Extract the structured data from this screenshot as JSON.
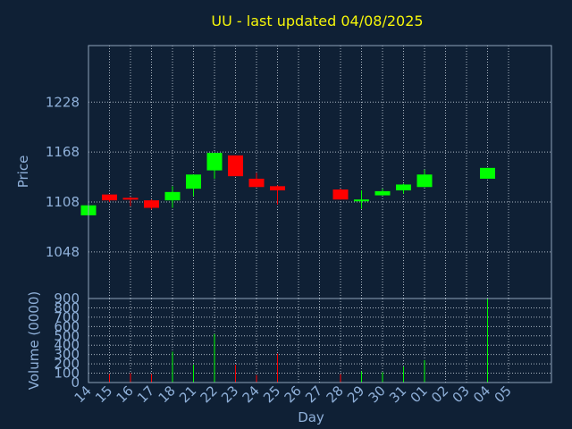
{
  "chart_data": [
    {
      "type": "candlestick",
      "title": "UU - last updated 04/08/2025",
      "ylabel": "Price",
      "xlabel": "",
      "yticks": [
        "1048",
        "1108",
        "1168",
        "1228"
      ],
      "ylim": [
        992,
        1296
      ],
      "grid": true,
      "colors": {
        "up": "#00ff00",
        "down": "#ff0000",
        "background": "#0f2035",
        "title": "#f5f50a",
        "axis_text": "#8fb0d9"
      },
      "candles": [
        {
          "day": "14",
          "open": 1092,
          "close": 1104,
          "high": 1114,
          "low": 1092
        },
        {
          "day": "15",
          "open": 1117,
          "close": 1110,
          "high": 1117,
          "low": 1108
        },
        {
          "day": "16",
          "open": 1113,
          "close": 1111,
          "high": 1114,
          "low": 1103
        },
        {
          "day": "17",
          "open": 1110,
          "close": 1101,
          "high": 1111,
          "low": 1099
        },
        {
          "day": "18",
          "open": 1110,
          "close": 1120,
          "high": 1127,
          "low": 1101
        },
        {
          "day": "21",
          "open": 1124,
          "close": 1141,
          "high": 1141,
          "low": 1115
        },
        {
          "day": "22",
          "open": 1146,
          "close": 1167,
          "high": 1167,
          "low": 1136
        },
        {
          "day": "23",
          "open": 1164,
          "close": 1139,
          "high": 1164,
          "low": 1139
        },
        {
          "day": "24",
          "open": 1136,
          "close": 1126,
          "high": 1143,
          "low": 1126
        },
        {
          "day": "25",
          "open": 1127,
          "close": 1122,
          "high": 1128,
          "low": 1105
        },
        {
          "day": "28",
          "open": 1123,
          "close": 1111,
          "high": 1124,
          "low": 1111
        },
        {
          "day": "29",
          "open": 1109,
          "close": 1111,
          "high": 1122,
          "low": 1100
        },
        {
          "day": "30",
          "open": 1116,
          "close": 1121,
          "high": 1124,
          "low": 1116
        },
        {
          "day": "31",
          "open": 1122,
          "close": 1129,
          "high": 1130,
          "low": 1118
        },
        {
          "day": "01",
          "open": 1126,
          "close": 1141,
          "high": 1147,
          "low": 1126
        },
        {
          "day": "04",
          "open": 1136,
          "close": 1149,
          "high": 1149,
          "low": 1136
        }
      ]
    },
    {
      "type": "bar",
      "title": "",
      "ylabel": "Volume (0000)",
      "xlabel": "Day",
      "ylim": [
        0,
        900
      ],
      "yticks": [
        "0",
        "100",
        "200",
        "300",
        "400",
        "500",
        "600",
        "700",
        "800",
        "900"
      ],
      "categories": [
        "14",
        "15",
        "16",
        "17",
        "18",
        "21",
        "22",
        "23",
        "24",
        "25",
        "26",
        "27",
        "28",
        "29",
        "30",
        "31",
        "01",
        "02",
        "03",
        "04",
        "05"
      ],
      "bars": [
        {
          "day": "14",
          "value": 40,
          "direction": "up"
        },
        {
          "day": "15",
          "value": 90,
          "direction": "down"
        },
        {
          "day": "16",
          "value": 100,
          "direction": "down"
        },
        {
          "day": "17",
          "value": 90,
          "direction": "down"
        },
        {
          "day": "18",
          "value": 330,
          "direction": "up"
        },
        {
          "day": "21",
          "value": 190,
          "direction": "up"
        },
        {
          "day": "22",
          "value": 520,
          "direction": "up"
        },
        {
          "day": "23",
          "value": 190,
          "direction": "down"
        },
        {
          "day": "24",
          "value": 80,
          "direction": "down"
        },
        {
          "day": "25",
          "value": 310,
          "direction": "down"
        },
        {
          "day": "28",
          "value": 90,
          "direction": "down"
        },
        {
          "day": "29",
          "value": 120,
          "direction": "up"
        },
        {
          "day": "30",
          "value": 110,
          "direction": "up"
        },
        {
          "day": "31",
          "value": 170,
          "direction": "up"
        },
        {
          "day": "01",
          "value": 240,
          "direction": "up"
        },
        {
          "day": "04",
          "value": 900,
          "direction": "up"
        }
      ]
    }
  ]
}
